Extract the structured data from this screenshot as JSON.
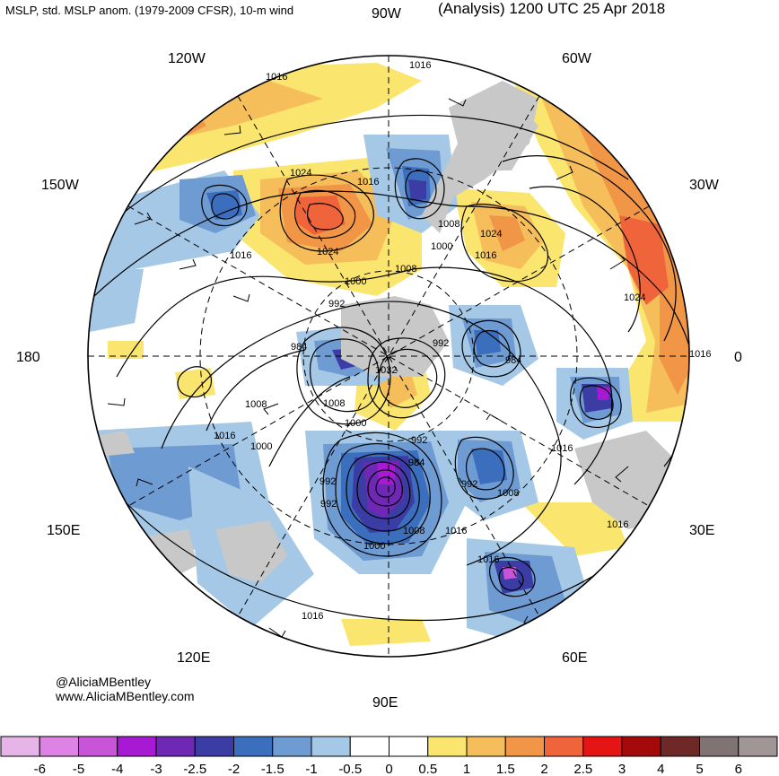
{
  "header": {
    "left_title": "MSLP, std. MSLP anom. (1979-2009 CFSR), 10-m wind",
    "right_title": "(Analysis) 1200 UTC 25 Apr 2018"
  },
  "longitude_labels": {
    "lon_90w": "90W",
    "lon_120w": "120W",
    "lon_60w": "60W",
    "lon_150w": "150W",
    "lon_30w": "30W",
    "lon_180": "180",
    "lon_0": "0",
    "lon_150e": "150E",
    "lon_30e": "30E",
    "lon_120e": "120E",
    "lon_60e": "60E",
    "lon_90e": "90E"
  },
  "isobar_labels": [
    "1016",
    "1016",
    "1024",
    "1016",
    "1016",
    "1024",
    "1008",
    "1000",
    "1024",
    "1016",
    "1008",
    "1000",
    "992",
    "984",
    "992",
    "984",
    "1032",
    "1024",
    "1016",
    "1008",
    "1008",
    "1000",
    "992",
    "1000",
    "984",
    "992",
    "992",
    "1008",
    "1016",
    "984",
    "992",
    "1000",
    "1008",
    "1016",
    "1016",
    "1016",
    "1016",
    "1016"
  ],
  "credit": {
    "handle": "@AliciaMBentley",
    "website": "www.AliciaMBentley.com"
  },
  "colorbar": {
    "labels": [
      "-6",
      "-5",
      "-4",
      "-3",
      "-2.5",
      "-2",
      "-1.5",
      "-1",
      "-0.5",
      "0",
      "0.5",
      "1",
      "1.5",
      "2",
      "2.5",
      "3",
      "4",
      "5",
      "6"
    ],
    "colors": [
      "#e6b4e6",
      "#de82e6",
      "#c855d7",
      "#a719d2",
      "#6e28b4",
      "#3c3ca5",
      "#3c6ebe",
      "#6e9bd2",
      "#a5c8e6",
      "#ffffff",
      "#ffffff",
      "#fae66e",
      "#f5be5a",
      "#f09646",
      "#f0643c",
      "#e61414",
      "#a50a0a",
      "#6e2828",
      "#7f7373",
      "#a09696"
    ]
  },
  "colors": {
    "land": "#c8c8c8",
    "positive_anom": "#f09646",
    "negative_anom": "#3c6ebe"
  }
}
